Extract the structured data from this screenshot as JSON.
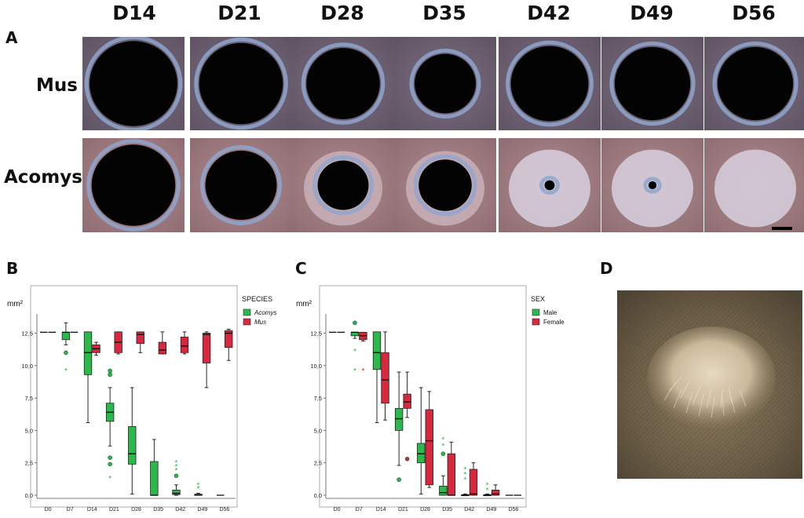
{
  "panels": {
    "a": "A",
    "b": "B",
    "c": "C",
    "d": "D"
  },
  "photo_days": [
    "D14",
    "D21",
    "D28",
    "D35",
    "D42",
    "D49",
    "D56"
  ],
  "rows": {
    "mus": "Mus",
    "acomys": "Acomys"
  },
  "photos": {
    "mus_hole": [
      0.43,
      0.41,
      0.36,
      0.3,
      0.38,
      0.37,
      0.37
    ],
    "acomys_hole": [
      0.41,
      0.35,
      0.25,
      0.26,
      0.05,
      0.04,
      0.0
    ]
  },
  "chart_data": [
    {
      "type": "box",
      "panel": "B",
      "unit": "mm²",
      "legend_title": "SPECIES",
      "legend_position": "right",
      "categories": [
        "D0",
        "D7",
        "D14",
        "D21",
        "D28",
        "D35",
        "D42",
        "D49",
        "D56"
      ],
      "y_ticks": [
        "0,0",
        "2,5",
        "5,0",
        "7,5",
        "10,0",
        "12,5"
      ],
      "ylim": [
        0,
        13.5
      ],
      "series": [
        {
          "name": "Acomys",
          "color": "#2db84c",
          "boxes": [
            {
              "cat": "D0",
              "min": 12.57,
              "q1": 12.57,
              "median": 12.57,
              "q3": 12.57,
              "max": 12.57
            },
            {
              "cat": "D7",
              "min": 11.6,
              "q1": 12.0,
              "median": 12.57,
              "q3": 12.57,
              "max": 13.3
            },
            {
              "cat": "D14",
              "min": 5.6,
              "q1": 9.3,
              "median": 11.0,
              "q3": 12.6,
              "max": 12.6
            },
            {
              "cat": "D21",
              "min": 3.8,
              "q1": 5.7,
              "median": 6.4,
              "q3": 7.1,
              "max": 8.3
            },
            {
              "cat": "D28",
              "min": 0.1,
              "q1": 2.4,
              "median": 3.2,
              "q3": 5.3,
              "max": 8.3
            },
            {
              "cat": "D35",
              "min": 0.0,
              "q1": 0.0,
              "median": 0.0,
              "q3": 2.6,
              "max": 4.3
            },
            {
              "cat": "D42",
              "min": 0.0,
              "q1": 0.05,
              "median": 0.15,
              "q3": 0.4,
              "max": 0.8
            },
            {
              "cat": "D49",
              "min": 0.0,
              "q1": 0.0,
              "median": 0.03,
              "q3": 0.08,
              "max": 0.15
            },
            {
              "cat": "D56",
              "min": 0.0,
              "q1": 0.0,
              "median": 0.0,
              "q3": 0.0,
              "max": 0.0
            }
          ],
          "outliers": [
            {
              "cat": "D7",
              "value": 11.0,
              "marker": "circle"
            },
            {
              "cat": "D7",
              "value": 9.6,
              "marker": "star"
            },
            {
              "cat": "D21",
              "value": 9.6,
              "marker": "circle"
            },
            {
              "cat": "D21",
              "value": 9.3,
              "marker": "circle"
            },
            {
              "cat": "D21",
              "value": 2.9,
              "marker": "circle"
            },
            {
              "cat": "D21",
              "value": 2.4,
              "marker": "circle"
            },
            {
              "cat": "D21",
              "value": 1.3,
              "marker": "star"
            },
            {
              "cat": "D42",
              "value": 2.5,
              "marker": "star"
            },
            {
              "cat": "D42",
              "value": 2.2,
              "marker": "star"
            },
            {
              "cat": "D42",
              "value": 1.9,
              "marker": "star"
            },
            {
              "cat": "D42",
              "value": 1.5,
              "marker": "circle"
            },
            {
              "cat": "D49",
              "value": 0.8,
              "marker": "star"
            },
            {
              "cat": "D49",
              "value": 0.5,
              "marker": "star"
            }
          ]
        },
        {
          "name": "Mus",
          "color": "#d8283d",
          "boxes": [
            {
              "cat": "D0",
              "min": 12.57,
              "q1": 12.57,
              "median": 12.57,
              "q3": 12.57,
              "max": 12.57
            },
            {
              "cat": "D7",
              "min": 12.57,
              "q1": 12.57,
              "median": 12.57,
              "q3": 12.57,
              "max": 12.57
            },
            {
              "cat": "D14",
              "min": 10.8,
              "q1": 11.0,
              "median": 11.3,
              "q3": 11.6,
              "max": 11.8
            },
            {
              "cat": "D21",
              "min": 10.9,
              "q1": 11.0,
              "median": 11.8,
              "q3": 12.6,
              "max": 12.6
            },
            {
              "cat": "D28",
              "min": 11.0,
              "q1": 11.7,
              "median": 12.4,
              "q3": 12.6,
              "max": 12.6
            },
            {
              "cat": "D35",
              "min": 10.9,
              "q1": 10.9,
              "median": 11.2,
              "q3": 11.8,
              "max": 12.6
            },
            {
              "cat": "D42",
              "min": 10.9,
              "q1": 11.0,
              "median": 11.5,
              "q3": 12.2,
              "max": 12.6
            },
            {
              "cat": "D49",
              "min": 8.3,
              "q1": 10.2,
              "median": 12.4,
              "q3": 12.5,
              "max": 12.6
            },
            {
              "cat": "D56",
              "min": 10.4,
              "q1": 11.4,
              "median": 12.5,
              "q3": 12.7,
              "max": 12.8
            }
          ],
          "outliers": []
        }
      ]
    },
    {
      "type": "box",
      "panel": "C",
      "unit": "mm²",
      "legend_title": "SEX",
      "legend_position": "right",
      "categories": [
        "D0",
        "D7",
        "D14",
        "D21",
        "D28",
        "D35",
        "D42",
        "D49",
        "D56"
      ],
      "y_ticks": [
        "0,0",
        "2,5",
        "5,0",
        "7,5",
        "10,0",
        "12,5"
      ],
      "ylim": [
        0,
        13.5
      ],
      "series": [
        {
          "name": "Male",
          "color": "#2db84c",
          "boxes": [
            {
              "cat": "D0",
              "min": 12.57,
              "q1": 12.57,
              "median": 12.57,
              "q3": 12.57,
              "max": 12.57
            },
            {
              "cat": "D7",
              "min": 12.1,
              "q1": 12.3,
              "median": 12.57,
              "q3": 12.57,
              "max": 12.57
            },
            {
              "cat": "D14",
              "min": 5.6,
              "q1": 9.7,
              "median": 11.0,
              "q3": 12.6,
              "max": 12.6
            },
            {
              "cat": "D21",
              "min": 2.3,
              "q1": 5.0,
              "median": 5.9,
              "q3": 6.7,
              "max": 9.5
            },
            {
              "cat": "D28",
              "min": 0.1,
              "q1": 2.5,
              "median": 3.2,
              "q3": 4.0,
              "max": 8.3
            },
            {
              "cat": "D35",
              "min": 0.0,
              "q1": 0.0,
              "median": 0.2,
              "q3": 0.7,
              "max": 1.5
            },
            {
              "cat": "D42",
              "min": 0.0,
              "q1": 0.0,
              "median": 0.0,
              "q3": 0.05,
              "max": 0.1
            },
            {
              "cat": "D49",
              "min": 0.0,
              "q1": 0.0,
              "median": 0.0,
              "q3": 0.05,
              "max": 0.1
            },
            {
              "cat": "D56",
              "min": 0.0,
              "q1": 0.0,
              "median": 0.0,
              "q3": 0.0,
              "max": 0.0
            }
          ],
          "outliers": [
            {
              "cat": "D7",
              "value": 13.3,
              "marker": "circle"
            },
            {
              "cat": "D7",
              "value": 11.1,
              "marker": "star"
            },
            {
              "cat": "D7",
              "value": 9.6,
              "marker": "star"
            },
            {
              "cat": "D21",
              "value": 1.2,
              "marker": "circle"
            },
            {
              "cat": "D35",
              "value": 4.3,
              "marker": "star"
            },
            {
              "cat": "D35",
              "value": 3.8,
              "marker": "star"
            },
            {
              "cat": "D35",
              "value": 3.2,
              "marker": "circle"
            },
            {
              "cat": "D42",
              "value": 2.0,
              "marker": "star"
            },
            {
              "cat": "D42",
              "value": 1.6,
              "marker": "star"
            },
            {
              "cat": "D42",
              "value": 1.2,
              "marker": "star"
            },
            {
              "cat": "D49",
              "value": 0.8,
              "marker": "star"
            },
            {
              "cat": "D49",
              "value": 0.4,
              "marker": "star"
            }
          ]
        },
        {
          "name": "Female",
          "color": "#d8283d",
          "boxes": [
            {
              "cat": "D0",
              "min": 12.57,
              "q1": 12.57,
              "median": 12.57,
              "q3": 12.57,
              "max": 12.57
            },
            {
              "cat": "D7",
              "min": 11.9,
              "q1": 12.0,
              "median": 12.3,
              "q3": 12.57,
              "max": 12.57
            },
            {
              "cat": "D14",
              "min": 5.8,
              "q1": 7.1,
              "median": 8.9,
              "q3": 11.0,
              "max": 12.6
            },
            {
              "cat": "D21",
              "min": 6.0,
              "q1": 6.7,
              "median": 7.2,
              "q3": 7.8,
              "max": 9.5
            },
            {
              "cat": "D28",
              "min": 0.6,
              "q1": 0.8,
              "median": 4.2,
              "q3": 6.6,
              "max": 8.0
            },
            {
              "cat": "D35",
              "min": 0.0,
              "q1": 0.0,
              "median": 0.0,
              "q3": 3.2,
              "max": 4.1
            },
            {
              "cat": "D42",
              "min": 0.0,
              "q1": 0.0,
              "median": 0.1,
              "q3": 2.0,
              "max": 2.5
            },
            {
              "cat": "D49",
              "min": 0.0,
              "q1": 0.0,
              "median": 0.1,
              "q3": 0.4,
              "max": 0.8
            },
            {
              "cat": "D56",
              "min": 0.0,
              "q1": 0.0,
              "median": 0.0,
              "q3": 0.0,
              "max": 0.0
            }
          ],
          "outliers": [
            {
              "cat": "D7",
              "value": 9.6,
              "marker": "star"
            },
            {
              "cat": "D21",
              "value": 2.8,
              "marker": "circle"
            }
          ]
        }
      ]
    }
  ],
  "colors": {
    "green": "#2db84c",
    "red": "#d8283d",
    "mus_skin": "#7d6e80",
    "acomys_skin": "#b08a8e",
    "wound_edge": "#8fa6cf"
  }
}
